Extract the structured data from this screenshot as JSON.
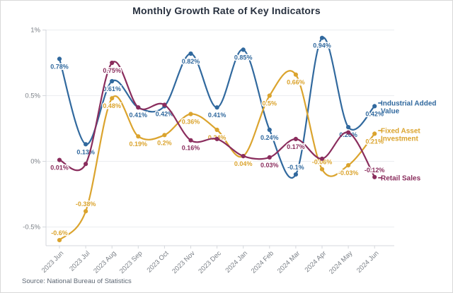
{
  "title": "Monthly Growth Rate of Key Indicators",
  "source": "Source: National Bureau of Statistics",
  "colors": {
    "industrial": "#31699E",
    "fixed_asset": "#DBA42E",
    "retail": "#8A2D5D",
    "grid": "#ebedf0",
    "axis": "#d4d7dc",
    "tick_label": "#7b8087",
    "title_text": "#28313f"
  },
  "chart_data": {
    "type": "line",
    "smooth": true,
    "title": "Monthly Growth Rate of Key Indicators",
    "categories": [
      "2023 Jun",
      "2023 Jul",
      "2023 Aug",
      "2023 Sep",
      "2023 Oct",
      "2023 Nov",
      "2023 Dec",
      "2024 Jan",
      "2024 Feb",
      "2024 Mar",
      "2024 Apr",
      "2024 May",
      "2024 Jun"
    ],
    "y_ticks": [
      {
        "value": 1,
        "label": "1%"
      },
      {
        "value": 0.5,
        "label": "0.5%"
      },
      {
        "value": 0,
        "label": "0%"
      },
      {
        "value": -0.5,
        "label": "-0.5%"
      }
    ],
    "ylim": [
      -0.65,
      1.05
    ],
    "ylabel": "",
    "xlabel": "",
    "grid": true,
    "legend_position": "line-end-right",
    "series": [
      {
        "name": "Industrial Added Value",
        "legend_lines": [
          "Industrial Added",
          "Value"
        ],
        "color": "#31699E",
        "values": [
          0.78,
          0.13,
          0.61,
          0.41,
          0.42,
          0.82,
          0.41,
          0.85,
          0.24,
          -0.1,
          0.94,
          0.26,
          0.42
        ],
        "labels": [
          "0.78%",
          "0.13%",
          "0.61%",
          "0.41%",
          "0.42%",
          "0.82%",
          "0.41%",
          "0.85%",
          "0.24%",
          "-0.1%",
          "0.94%",
          "0.26%",
          "0.42%"
        ],
        "label_pos": [
          "b",
          "b",
          "b",
          "b",
          "b",
          "b",
          "b",
          "b",
          "b",
          "a",
          "b",
          "b",
          "b"
        ]
      },
      {
        "name": "Fixed Asset Investment",
        "legend_lines": [
          "Fixed Asset",
          "Investment"
        ],
        "color": "#DBA42E",
        "values": [
          -0.6,
          -0.38,
          0.48,
          0.19,
          0.2,
          0.36,
          0.24,
          0.04,
          0.5,
          0.66,
          -0.06,
          -0.03,
          0.21
        ],
        "labels": [
          "-0.6%",
          "-0.38%",
          "0.48%",
          "0.19%",
          "0.2%",
          "0.36%",
          "0.24%",
          "0.04%",
          "0.5%",
          "0.66%",
          "-0.06%",
          "-0.03%",
          "0.21%"
        ],
        "label_pos": [
          "a",
          "a",
          "b",
          "b",
          "b",
          "b",
          "b",
          "b",
          "b",
          "b",
          "a",
          "b",
          "b"
        ]
      },
      {
        "name": "Retail Sales",
        "legend_lines": [
          "Retail Sales"
        ],
        "color": "#8A2D5D",
        "values": [
          0.01,
          -0.02,
          0.75,
          0.41,
          0.43,
          0.16,
          0.17,
          0.04,
          0.03,
          0.17,
          0.02,
          0.22,
          -0.12
        ],
        "labels": [
          "0.01%",
          null,
          "0.75%",
          null,
          null,
          "0.16%",
          null,
          null,
          "0.03%",
          "0.17%",
          null,
          null,
          "-0.12%"
        ],
        "label_pos": [
          "b",
          null,
          "b",
          null,
          null,
          "b",
          null,
          null,
          "b",
          "b",
          null,
          null,
          "a"
        ]
      }
    ]
  }
}
